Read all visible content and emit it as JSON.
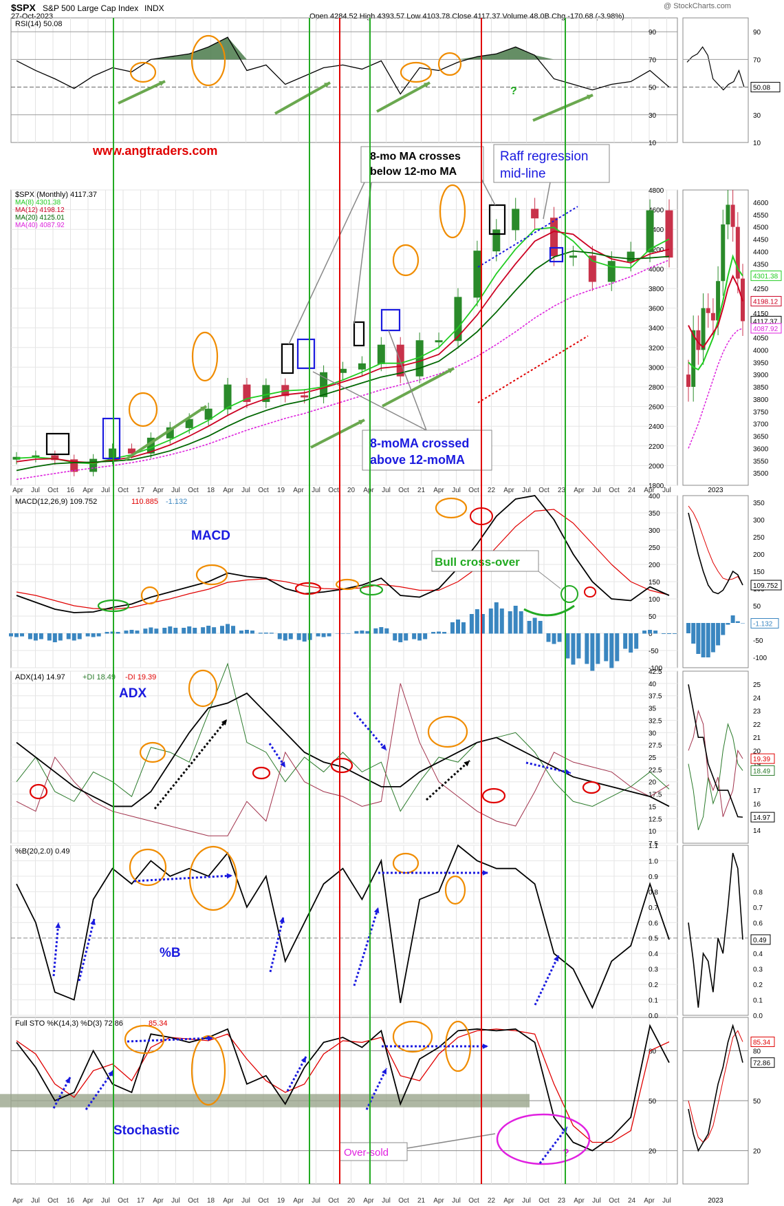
{
  "header": {
    "symbol": "$SPX",
    "name": "S&P 500 Large Cap Index",
    "exchange": "INDX",
    "date": "27-Oct-2023",
    "ohlc": "Open 4284.52  High 4393.57  Low 4103.78  Close 4117.37  Volume 48.0B  Chg -170.68 (-3.98%)",
    "watermark": "@ StockCharts.com"
  },
  "colors": {
    "price_up": "#2a8a2a",
    "price_down": "#c8324a",
    "ma8": "#22cc22",
    "ma12": "#cc0022",
    "ma20": "#006600",
    "ma40": "#dd22dd",
    "macd_hist": "#3a86c0",
    "annotation_orange": "#f08c00",
    "annotation_blue": "#1a1adf",
    "annotation_red": "#e00000",
    "annotation_green": "#22aa22",
    "annotation_magenta": "#e020e0"
  },
  "annotations": {
    "website": "www.angtraders.com",
    "ma_cross_below": "8-mo MA crosses below 12-mo MA",
    "ma_cross_below_l1": "8-mo MA crosses",
    "ma_cross_below_l2": "below 12-mo MA",
    "raff_l1": "Raff regression",
    "raff_l2": "mid-line",
    "ma_cross_above_l1": "8-moMA crossed",
    "ma_cross_above_l2": "above 12-moMA",
    "macd": "MACD",
    "bull_cross": "Bull cross-over",
    "adx": "ADX",
    "pctb": "%B",
    "stochastic": "Stochastic",
    "oversold": "Over-sold",
    "question": "?"
  },
  "x_axis_labels": [
    "Apr",
    "Jul",
    "Oct",
    "16",
    "Apr",
    "Jul",
    "Oct",
    "17",
    "Apr",
    "Jul",
    "Oct",
    "18",
    "Apr",
    "Jul",
    "Oct",
    "19",
    "Apr",
    "Jul",
    "Oct",
    "20",
    "Apr",
    "Jul",
    "Oct",
    "21",
    "Apr",
    "Jul",
    "Oct",
    "22",
    "Apr",
    "Jul",
    "Oct",
    "23",
    "Apr",
    "Jul",
    "Oct",
    "24",
    "Apr",
    "Jul"
  ],
  "side_x_label": "2023",
  "chart_data": [
    {
      "type": "line",
      "title": "RSI(14) 50.08",
      "legend": "RSI(14) 50.08",
      "ylim": [
        10,
        100
      ],
      "yticks": [
        30,
        50,
        70,
        90
      ],
      "y_extra_label": "10",
      "last_value": "50.08",
      "x": [
        "2015-04",
        "2015-07",
        "2015-10",
        "2016-01",
        "2016-04",
        "2016-07",
        "2016-10",
        "2017-01",
        "2017-04",
        "2017-07",
        "2017-10",
        "2018-01",
        "2018-04",
        "2018-07",
        "2018-10",
        "2019-01",
        "2019-04",
        "2019-07",
        "2019-10",
        "2020-01",
        "2020-04",
        "2020-07",
        "2020-10",
        "2021-01",
        "2021-04",
        "2021-07",
        "2021-10",
        "2022-01",
        "2022-04",
        "2022-07",
        "2022-10",
        "2023-01",
        "2023-04",
        "2023-07",
        "2023-10"
      ],
      "series": [
        {
          "values": [
            69,
            62,
            56,
            49,
            58,
            64,
            61,
            70,
            72,
            74,
            79,
            86,
            62,
            66,
            52,
            58,
            64,
            66,
            63,
            69,
            45,
            64,
            62,
            68,
            72,
            74,
            79,
            73,
            56,
            52,
            48,
            52,
            54,
            62,
            50
          ]
        }
      ]
    },
    {
      "type": "line",
      "title": "$SPX (Monthly) 4117.37",
      "legend": "$SPX (Monthly) 4117.37",
      "ylim": [
        1800,
        4800
      ],
      "yticks": [
        1800,
        2000,
        2200,
        2400,
        2600,
        2800,
        3000,
        3200,
        3400,
        3600,
        3800,
        4000,
        4200,
        4400,
        4600,
        4800
      ],
      "x": [
        "2015-04",
        "2015-07",
        "2015-10",
        "2016-01",
        "2016-04",
        "2016-07",
        "2016-10",
        "2017-01",
        "2017-04",
        "2017-07",
        "2017-10",
        "2018-01",
        "2018-04",
        "2018-07",
        "2018-10",
        "2019-01",
        "2019-04",
        "2019-07",
        "2019-10",
        "2020-01",
        "2020-04",
        "2020-07",
        "2020-10",
        "2021-01",
        "2021-04",
        "2021-07",
        "2021-10",
        "2022-01",
        "2022-04",
        "2022-07",
        "2022-10",
        "2023-01",
        "2023-04",
        "2023-07",
        "2023-10"
      ],
      "series": [
        {
          "name": "$SPX",
          "values": [
            2085,
            2100,
            2060,
            1940,
            2065,
            2170,
            2126,
            2280,
            2385,
            2470,
            2575,
            2820,
            2650,
            2815,
            2710,
            2700,
            2945,
            2980,
            3035,
            3225,
            2910,
            3270,
            3270,
            3710,
            4180,
            4395,
            4605,
            4515,
            4130,
            4130,
            3870,
            4075,
            4170,
            4590,
            4117
          ]
        },
        {
          "name": "MA(8) 4301.38",
          "values": [
            2075,
            2085,
            2070,
            2030,
            2020,
            2070,
            2110,
            2180,
            2260,
            2360,
            2460,
            2590,
            2680,
            2720,
            2760,
            2770,
            2800,
            2870,
            2950,
            3040,
            3040,
            3100,
            3200,
            3400,
            3650,
            3950,
            4200,
            4400,
            4420,
            4280,
            4080,
            4020,
            4010,
            4200,
            4301
          ]
        },
        {
          "name": "MA(12) 4198.12",
          "values": [
            2040,
            2065,
            2070,
            2040,
            2030,
            2055,
            2085,
            2140,
            2210,
            2300,
            2400,
            2510,
            2610,
            2680,
            2720,
            2740,
            2790,
            2850,
            2910,
            2990,
            3010,
            3060,
            3130,
            3310,
            3530,
            3800,
            4050,
            4280,
            4380,
            4350,
            4200,
            4100,
            4060,
            4150,
            4198
          ]
        },
        {
          "name": "MA(20) 4125.01",
          "values": [
            1950,
            1990,
            2020,
            2030,
            2035,
            2045,
            2060,
            2100,
            2150,
            2220,
            2300,
            2400,
            2490,
            2560,
            2620,
            2660,
            2720,
            2780,
            2840,
            2900,
            2940,
            2990,
            3060,
            3200,
            3360,
            3560,
            3780,
            3990,
            4120,
            4180,
            4160,
            4120,
            4100,
            4110,
            4125
          ]
        },
        {
          "name": "MA(40) 4087.92",
          "values": [
            1860,
            1890,
            1920,
            1950,
            1975,
            2000,
            2030,
            2065,
            2110,
            2160,
            2220,
            2290,
            2360,
            2420,
            2480,
            2530,
            2590,
            2650,
            2710,
            2770,
            2820,
            2870,
            2930,
            3010,
            3110,
            3230,
            3360,
            3500,
            3620,
            3720,
            3790,
            3850,
            3920,
            4010,
            4088
          ]
        }
      ]
    },
    {
      "type": "bar",
      "title": "MACD(12,26,9) 109.752, 110.885, -1.132",
      "legend_black": "MACD(12,26,9) 109.752",
      "legend_red": "110.885",
      "legend_blue": "-1.132",
      "ylim": [
        -100,
        400
      ],
      "yticks": [
        -100,
        -50,
        0,
        50,
        100,
        150,
        200,
        250,
        300,
        350,
        400
      ],
      "x": [
        "2015-04",
        "2015-07",
        "2015-10",
        "2016-01",
        "2016-04",
        "2016-07",
        "2016-10",
        "2017-01",
        "2017-04",
        "2017-07",
        "2017-10",
        "2018-01",
        "2018-04",
        "2018-07",
        "2018-10",
        "2019-01",
        "2019-04",
        "2019-07",
        "2019-10",
        "2020-01",
        "2020-04",
        "2020-07",
        "2020-10",
        "2021-01",
        "2021-04",
        "2021-07",
        "2021-10",
        "2022-01",
        "2022-04",
        "2022-07",
        "2022-10",
        "2023-01",
        "2023-04",
        "2023-07",
        "2023-10"
      ],
      "series": [
        {
          "name": "MACD",
          "values": [
            110,
            90,
            70,
            60,
            62,
            75,
            85,
            105,
            120,
            135,
            150,
            175,
            165,
            160,
            130,
            115,
            120,
            128,
            140,
            160,
            110,
            105,
            130,
            190,
            260,
            340,
            390,
            400,
            330,
            230,
            150,
            100,
            95,
            135,
            110
          ]
        },
        {
          "name": "Signal",
          "values": [
            120,
            110,
            95,
            80,
            72,
            70,
            75,
            88,
            100,
            115,
            128,
            148,
            155,
            158,
            150,
            138,
            130,
            128,
            132,
            142,
            135,
            125,
            125,
            150,
            190,
            250,
            310,
            355,
            360,
            320,
            260,
            200,
            150,
            125,
            111
          ]
        },
        {
          "name": "Histogram",
          "values": [
            -10,
            -20,
            -25,
            -20,
            -10,
            5,
            10,
            17,
            20,
            20,
            22,
            27,
            10,
            2,
            -20,
            -23,
            -10,
            0,
            8,
            18,
            -25,
            -20,
            5,
            40,
            70,
            90,
            80,
            45,
            -30,
            -90,
            -110,
            -100,
            -55,
            10,
            -1
          ]
        }
      ]
    },
    {
      "type": "line",
      "title": "ADX(14) 14.97 +DI 18.49 -DI 19.39",
      "legend_black": "ADX(14) 14.97",
      "legend_green": "+DI 18.49",
      "legend_red": "-DI 19.39",
      "ylim": [
        7.5,
        42.5
      ],
      "yticks": [
        7.5,
        10,
        12.5,
        15,
        17.5,
        20,
        22.5,
        25,
        27.5,
        30,
        32.5,
        35,
        37.5,
        40,
        42.5
      ],
      "x": [
        "2015-04",
        "2015-07",
        "2015-10",
        "2016-01",
        "2016-04",
        "2016-07",
        "2016-10",
        "2017-01",
        "2017-04",
        "2017-07",
        "2017-10",
        "2018-01",
        "2018-04",
        "2018-07",
        "2018-10",
        "2019-01",
        "2019-04",
        "2019-07",
        "2019-10",
        "2020-01",
        "2020-04",
        "2020-07",
        "2020-10",
        "2021-01",
        "2021-04",
        "2021-07",
        "2021-10",
        "2022-01",
        "2022-04",
        "2022-07",
        "2022-10",
        "2023-01",
        "2023-04",
        "2023-07",
        "2023-10"
      ],
      "series": [
        {
          "name": "ADX",
          "values": [
            28,
            25,
            22,
            19,
            17,
            15,
            15,
            18,
            24,
            30,
            35,
            36,
            38,
            34,
            30,
            26,
            24,
            23,
            21,
            19,
            19,
            22,
            24,
            26,
            28,
            29,
            27,
            25,
            23,
            21,
            20,
            19,
            18,
            17,
            15
          ]
        },
        {
          "name": "+DI",
          "values": [
            20,
            25,
            18,
            16,
            22,
            20,
            17,
            27,
            26,
            24,
            34,
            44,
            28,
            26,
            20,
            25,
            22,
            26,
            22,
            24,
            14,
            20,
            25,
            24,
            28,
            29,
            30,
            26,
            20,
            16,
            15,
            17,
            19,
            22,
            18.5
          ]
        },
        {
          "name": "-DI",
          "values": [
            16,
            14,
            25,
            20,
            16,
            14,
            13,
            12,
            11,
            10,
            9,
            9,
            16,
            12,
            26,
            20,
            18,
            17,
            15,
            16,
            40,
            28,
            20,
            17,
            14,
            12,
            11,
            18,
            26,
            24,
            23,
            22,
            19,
            17,
            19.4
          ]
        }
      ]
    },
    {
      "type": "line",
      "title": "%B(20,2.0) 0.49",
      "legend": "%B(20,2.0) 0.49",
      "ylim": [
        0,
        1.1
      ],
      "yticks": [
        0.0,
        0.1,
        0.2,
        0.3,
        0.4,
        0.5,
        0.6,
        0.7,
        0.8,
        0.9,
        1.0,
        1.1
      ],
      "x": [
        "2015-04",
        "2015-07",
        "2015-10",
        "2016-01",
        "2016-04",
        "2016-07",
        "2016-10",
        "2017-01",
        "2017-04",
        "2017-07",
        "2017-10",
        "2018-01",
        "2018-04",
        "2018-07",
        "2018-10",
        "2019-01",
        "2019-04",
        "2019-07",
        "2019-10",
        "2020-01",
        "2020-04",
        "2020-07",
        "2020-10",
        "2021-01",
        "2021-04",
        "2021-07",
        "2021-10",
        "2022-01",
        "2022-04",
        "2022-07",
        "2022-10",
        "2023-01",
        "2023-04",
        "2023-07",
        "2023-10"
      ],
      "series": [
        {
          "values": [
            0.85,
            0.6,
            0.15,
            0.1,
            0.75,
            0.95,
            0.85,
            1.0,
            0.9,
            0.95,
            0.9,
            1.05,
            0.7,
            0.9,
            0.35,
            0.6,
            0.85,
            0.95,
            0.75,
            1.0,
            0.08,
            0.75,
            0.8,
            1.1,
            1.0,
            0.95,
            0.95,
            0.85,
            0.4,
            0.3,
            0.05,
            0.35,
            0.45,
            0.85,
            0.49
          ]
        }
      ]
    },
    {
      "type": "line",
      "title": "Full STO %K(14,3) %D(3) 72.86, 85.34",
      "legend_black": "Full STO %K(14,3) %D(3) 72.86",
      "legend_red": "85.34",
      "ylim": [
        0,
        100
      ],
      "yticks": [
        20,
        50,
        80
      ],
      "x": [
        "2015-04",
        "2015-07",
        "2015-10",
        "2016-01",
        "2016-04",
        "2016-07",
        "2016-10",
        "2017-01",
        "2017-04",
        "2017-07",
        "2017-10",
        "2018-01",
        "2018-04",
        "2018-07",
        "2018-10",
        "2019-01",
        "2019-04",
        "2019-07",
        "2019-10",
        "2020-01",
        "2020-04",
        "2020-07",
        "2020-10",
        "2021-01",
        "2021-04",
        "2021-07",
        "2021-10",
        "2022-01",
        "2022-04",
        "2022-07",
        "2022-10",
        "2023-01",
        "2023-04",
        "2023-07",
        "2023-10"
      ],
      "series": [
        {
          "name": "%K",
          "values": [
            85,
            70,
            50,
            55,
            80,
            60,
            55,
            90,
            88,
            85,
            88,
            93,
            60,
            65,
            48,
            70,
            85,
            88,
            82,
            92,
            48,
            75,
            82,
            92,
            93,
            92,
            93,
            85,
            40,
            25,
            20,
            28,
            40,
            95,
            72.86
          ]
        },
        {
          "name": "%D",
          "values": [
            86,
            78,
            60,
            52,
            68,
            72,
            62,
            82,
            88,
            87,
            86,
            90,
            75,
            62,
            55,
            60,
            78,
            86,
            85,
            88,
            65,
            62,
            78,
            88,
            92,
            93,
            92,
            90,
            60,
            35,
            25,
            25,
            32,
            80,
            85.34
          ]
        }
      ]
    }
  ],
  "side_chart": {
    "price_labels": [
      "4600",
      "4550",
      "4500",
      "4450",
      "4400",
      "4350",
      "4300",
      "4250",
      "4200",
      "4150",
      "4100",
      "4050",
      "4000",
      "3950",
      "3900",
      "3850",
      "3800",
      "3750",
      "3700",
      "3650",
      "3600",
      "3550",
      "3500"
    ],
    "price_last": [
      "4301.38",
      "4198.12",
      "4117.37",
      "4087.92"
    ],
    "rsi_labels": [
      "90",
      "70",
      "50",
      "30",
      "10"
    ],
    "rsi_last": "50.08",
    "macd_labels": [
      "350",
      "300",
      "250",
      "200",
      "150",
      "100",
      "50",
      "0",
      "-50",
      "-100"
    ],
    "macd_last": [
      "109.752",
      "-1.132"
    ],
    "adx_labels": [
      "25",
      "24",
      "23",
      "22",
      "21",
      "20",
      "19",
      "17",
      "16",
      "15",
      "14"
    ],
    "adx_last": [
      "19.39",
      "18.49",
      "14.97"
    ],
    "pctb_labels": [
      "0.8",
      "0.7",
      "0.6",
      "0.5",
      "0.4",
      "0.3",
      "0.2",
      "0.1",
      "0.0"
    ],
    "pctb_last": "0.49",
    "sto_labels": [
      "80",
      "50",
      "20"
    ],
    "sto_last": [
      "85.34",
      "72.86"
    ]
  }
}
